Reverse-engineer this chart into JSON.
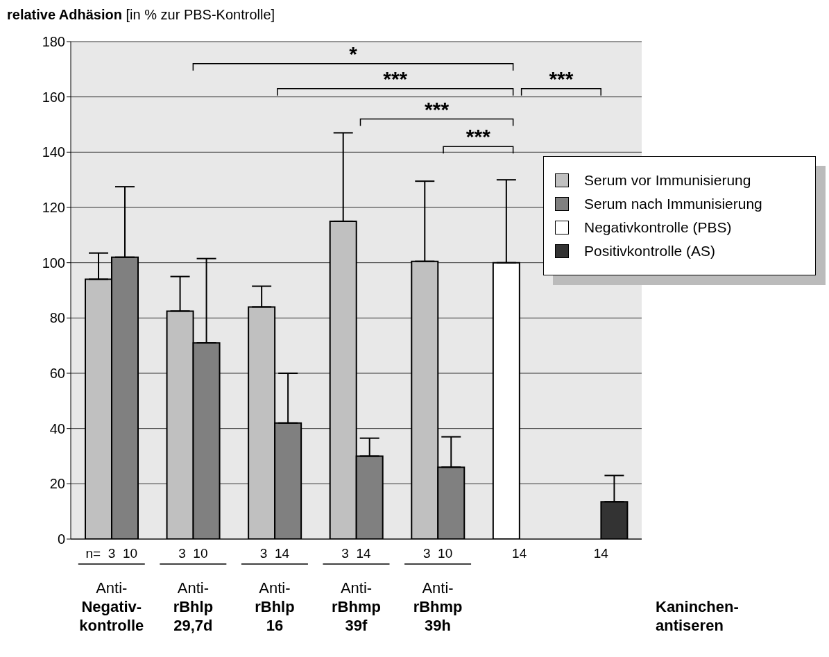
{
  "chart_data": {
    "type": "bar",
    "ylabel": "relative Adhäsion [in % zur PBS-Kontrolle]",
    "categories": [
      "Anti- Negativ- kontrolle",
      "Anti- rBhlp 29,7d",
      "Anti- rBhlp 16",
      "Anti- rBhmp 39f",
      "Anti- rBhmp 39h",
      null,
      null
    ],
    "series": [
      {
        "name": "Serum vor Immunisierung",
        "color": "#c0c0c0",
        "values": [
          94,
          82.5,
          84,
          115,
          100.5,
          null,
          null
        ],
        "errors": [
          [
            94,
            103.5
          ],
          [
            82.5,
            95
          ],
          [
            84,
            91.5
          ],
          [
            115,
            147
          ],
          [
            100.5,
            129.5
          ],
          null,
          null
        ]
      },
      {
        "name": "Serum nach Immunisierung",
        "color": "#808080",
        "values": [
          102,
          71,
          42,
          30,
          26,
          null,
          null
        ],
        "errors": [
          [
            102,
            127.5
          ],
          [
            71,
            101.5
          ],
          [
            42,
            60
          ],
          [
            30,
            36.5
          ],
          [
            26,
            37
          ],
          null,
          null
        ]
      },
      {
        "name": "Negativkontrolle (PBS)",
        "color": "#ffffff",
        "values": [
          null,
          null,
          null,
          null,
          null,
          100,
          null
        ],
        "errors": [
          null,
          null,
          null,
          null,
          null,
          [
            100,
            130
          ],
          null
        ]
      },
      {
        "name": "Positivkontrolle (AS)",
        "color": "#333333",
        "values": [
          null,
          null,
          null,
          null,
          null,
          null,
          13.5
        ],
        "errors": [
          null,
          null,
          null,
          null,
          null,
          null,
          [
            13.5,
            23
          ]
        ]
      }
    ],
    "ylim": [
      0,
      180
    ],
    "yticks": [
      0,
      20,
      40,
      60,
      80,
      100,
      120,
      140,
      160,
      180
    ],
    "grid": "y",
    "legend": "right",
    "annotations": [
      "n=  3  10",
      "3  10",
      "3  14",
      "3  14",
      "3  10",
      "14",
      "14",
      "*",
      "***",
      "***",
      "***",
      "***",
      "Kaninchen-antiseren"
    ]
  }
}
